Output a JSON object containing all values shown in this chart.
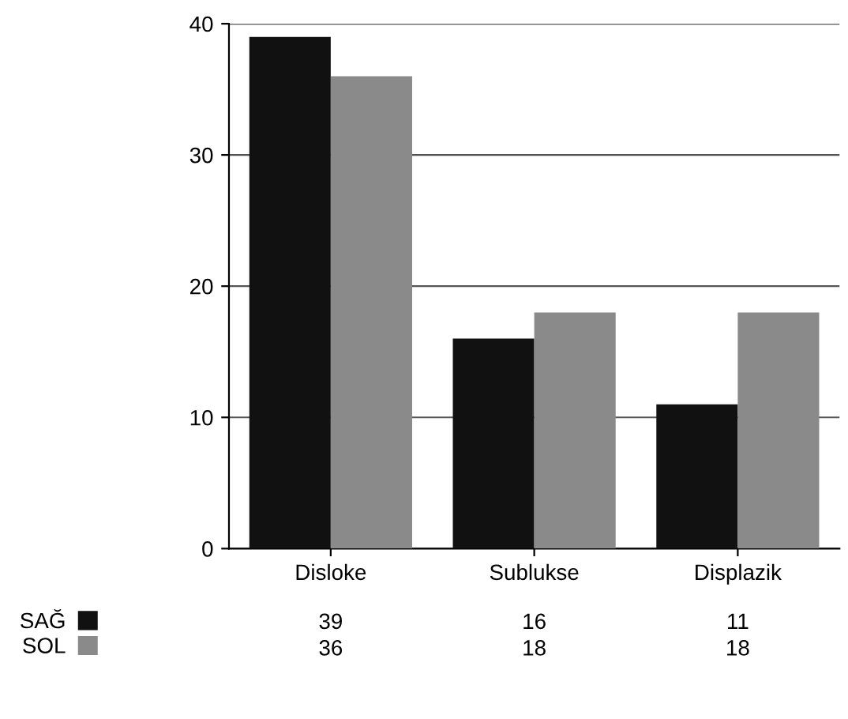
{
  "chart_data": {
    "type": "bar",
    "categories": [
      "Disloke",
      "Sublukse",
      "Displazik"
    ],
    "series": [
      {
        "name": "SAĞ",
        "color": "#111111",
        "values": [
          39,
          16,
          11
        ]
      },
      {
        "name": "SOL",
        "color": "#8a8a8a",
        "values": [
          36,
          18,
          18
        ]
      }
    ],
    "ylim": [
      0,
      40
    ],
    "yticks": [
      0,
      10,
      20,
      30,
      40
    ],
    "grid": "y",
    "legend": "bottom",
    "data_labels": true
  }
}
